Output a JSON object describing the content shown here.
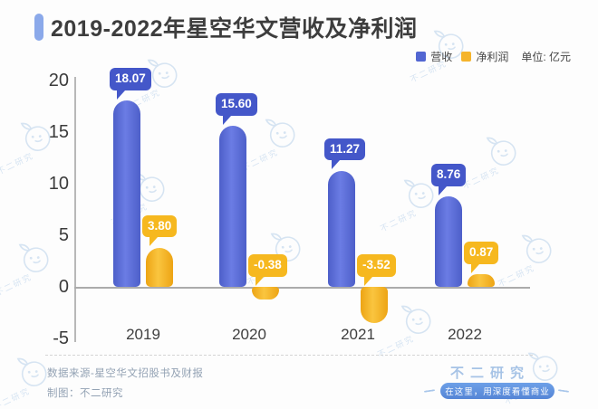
{
  "header": {
    "title": "2019-2022年星空华文营收及净利润"
  },
  "legend": {
    "unit_label": "单位: 亿元"
  },
  "chart_data": {
    "type": "bar",
    "title": "2019-2022年星空华文营收及净利润",
    "unit": "亿元",
    "categories": [
      "2019",
      "2020",
      "2021",
      "2022"
    ],
    "series": [
      {
        "name": "营收",
        "values": [
          18.07,
          15.6,
          11.27,
          8.76
        ],
        "labels": [
          "18.07",
          "15.60",
          "11.27",
          "8.76"
        ],
        "color": "#5266d2",
        "callout_color": "#4457c9"
      },
      {
        "name": "净利润",
        "values": [
          3.8,
          -0.38,
          -3.52,
          0.87
        ],
        "labels": [
          "3.80",
          "-0.38",
          "-3.52",
          "0.87"
        ],
        "color": "#f5b42c",
        "callout_color": "#f6b81f"
      }
    ],
    "y_ticks": [
      "20",
      "15",
      "10",
      "5",
      "0",
      "-5"
    ],
    "y_tick_values": [
      20,
      15,
      10,
      5,
      0,
      -5
    ],
    "ylim": [
      -5,
      20
    ],
    "grid": false,
    "legend_position": "top-right",
    "xlabel": "",
    "ylabel": ""
  },
  "footer": {
    "source": "数据来源-星空华文招股书及财报",
    "credit": "制图：不二研究"
  },
  "brand": {
    "name": "不二研究",
    "tagline": "在这里，用深度看懂商业",
    "watermark_text": "不二研究"
  },
  "colors": {
    "revenue": "#5266d2",
    "profit": "#f5b42c",
    "revenue_callout": "#4457c9",
    "profit_callout": "#f6b81f",
    "title_accent": "#8ba9ea",
    "watermark": "#b7d0ea",
    "axis_line": "#ababab"
  }
}
